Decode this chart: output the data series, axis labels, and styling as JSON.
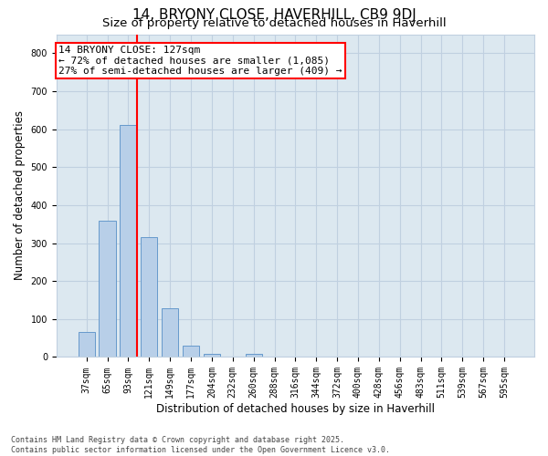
{
  "title": "14, BRYONY CLOSE, HAVERHILL, CB9 9DJ",
  "subtitle": "Size of property relative to detached houses in Haverhill",
  "xlabel": "Distribution of detached houses by size in Haverhill",
  "ylabel": "Number of detached properties",
  "footer_line1": "Contains HM Land Registry data © Crown copyright and database right 2025.",
  "footer_line2": "Contains public sector information licensed under the Open Government Licence v3.0.",
  "categories": [
    "37sqm",
    "65sqm",
    "93sqm",
    "121sqm",
    "149sqm",
    "177sqm",
    "204sqm",
    "232sqm",
    "260sqm",
    "288sqm",
    "316sqm",
    "344sqm",
    "372sqm",
    "400sqm",
    "428sqm",
    "456sqm",
    "483sqm",
    "511sqm",
    "539sqm",
    "567sqm",
    "595sqm"
  ],
  "values": [
    65,
    360,
    610,
    315,
    128,
    30,
    8,
    0,
    8,
    0,
    0,
    0,
    0,
    0,
    0,
    0,
    0,
    0,
    0,
    0,
    0
  ],
  "bar_color": "#b8cfe8",
  "bar_edgecolor": "#6699cc",
  "grid_color": "#c0d0e0",
  "background_color": "#dce8f0",
  "vline_color": "red",
  "vline_xindex": 2,
  "annotation_text": "14 BRYONY CLOSE: 127sqm\n← 72% of detached houses are smaller (1,085)\n27% of semi-detached houses are larger (409) →",
  "annotation_box_edgecolor": "red",
  "ylim": [
    0,
    850
  ],
  "yticks": [
    0,
    100,
    200,
    300,
    400,
    500,
    600,
    700,
    800
  ],
  "title_fontsize": 11,
  "subtitle_fontsize": 9.5,
  "annot_fontsize": 8,
  "tick_fontsize": 7,
  "ylabel_fontsize": 8.5,
  "xlabel_fontsize": 8.5,
  "footer_fontsize": 6
}
